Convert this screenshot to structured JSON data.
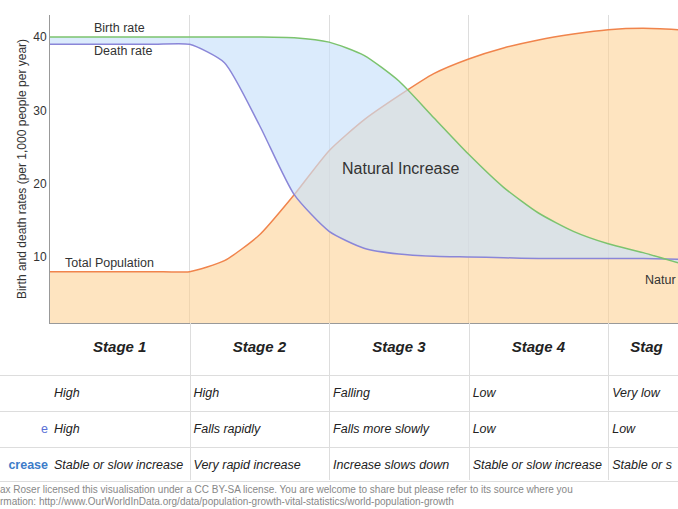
{
  "chart_data": {
    "type": "line",
    "y_label": "Birth and death rates (per 1,000 people per year)",
    "x": [
      0,
      0.25,
      0.5,
      0.75,
      1,
      1.25,
      1.5,
      1.75,
      2,
      2.25,
      2.5,
      2.75,
      3,
      3.25,
      3.5,
      3.75,
      4,
      4.25,
      4.5
    ],
    "xlim": [
      0,
      4.5
    ],
    "xticks": [
      1,
      2,
      3,
      4
    ],
    "ylim": [
      1,
      43
    ],
    "yticks": [
      10,
      20,
      30,
      40
    ],
    "grid": true,
    "tick_labels": "y",
    "series": [
      {
        "name": "Total Population",
        "type": "area",
        "color": "#f0844c",
        "values": [
          8,
          8,
          8,
          8,
          8,
          9.5,
          13,
          18.5,
          24.5,
          28.7,
          32,
          35,
          37,
          38.5,
          39.6,
          40.4,
          41,
          41.2,
          41
        ]
      },
      {
        "name": "Death rate",
        "type": "line",
        "color": "#8a86d8",
        "values": [
          39,
          39,
          39,
          39,
          39,
          36.5,
          28,
          18.5,
          13.5,
          11.2,
          10.4,
          10.1,
          10,
          9.9,
          9.8,
          9.8,
          9.8,
          9.8,
          9.7
        ]
      },
      {
        "name": "Birth rate",
        "type": "area",
        "color": "#7cc36e",
        "values": [
          40,
          40,
          40,
          40,
          40,
          40,
          40,
          39.9,
          39.3,
          37.5,
          34,
          29,
          24,
          19.5,
          16,
          13.5,
          11.8,
          10.6,
          9.2
        ]
      }
    ],
    "annotations": [
      {
        "text": "Birth rate",
        "x": 0.3,
        "y": 41.2
      },
      {
        "text": "Death rate",
        "x": 0.3,
        "y": 38.1
      },
      {
        "text": "Total Population",
        "x": 0.09,
        "y": 9.2
      },
      {
        "text": "Natural Increase",
        "x": 2.08,
        "y": 22.1
      },
      {
        "text": "Natur",
        "x": 4.25,
        "y": 6.9
      }
    ]
  },
  "table": {
    "columns": [
      "Stage 1",
      "Stage 2",
      "Stage 3",
      "Stage 4",
      "Stag"
    ],
    "rows": [
      {
        "cells": [
          "High",
          "High",
          "Falling",
          "Low",
          "Very low"
        ]
      },
      {
        "label": "e",
        "cells": [
          "High",
          "Falls rapidly",
          "Falls more slowly",
          "Low",
          "Low"
        ]
      },
      {
        "label": "crease",
        "cells": [
          "Stable or slow increase",
          "Very rapid increase",
          "Increase slows down",
          "Stable or slow increase",
          "Stable or s"
        ]
      }
    ]
  },
  "footer": {
    "lines": [
      "ax Roser licensed this visualisation under a CC BY-SA license. You are welcome to share but please refer to its source where you",
      "rmation: http://www.OurWorldInData.org/data/population-growth-vital-statistics/world-population-growth"
    ]
  }
}
